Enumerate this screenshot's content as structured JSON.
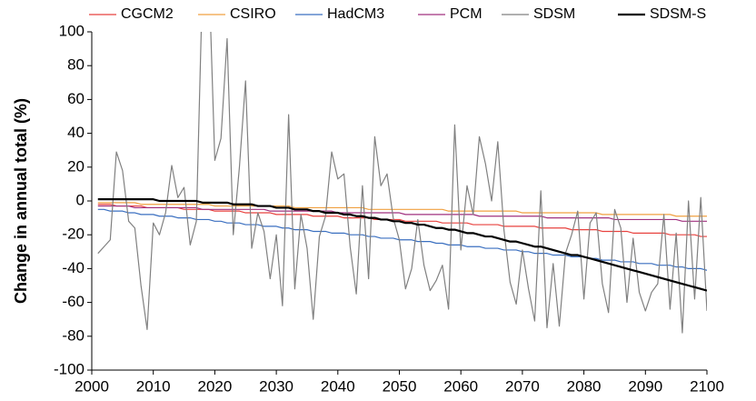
{
  "chart_data": {
    "type": "line",
    "ylabel": "Change in annual total (%)",
    "xlim": [
      2000,
      2100
    ],
    "xticks": [
      2000,
      2010,
      2020,
      2030,
      2040,
      2050,
      2060,
      2070,
      2080,
      2090,
      2100
    ],
    "ylim": [
      -100,
      100
    ],
    "yticks": [
      -100,
      -80,
      -60,
      -40,
      -20,
      0,
      20,
      40,
      60,
      80,
      100
    ],
    "grid": false,
    "legend": "top",
    "x": [
      2001,
      2002,
      2003,
      2004,
      2005,
      2006,
      2007,
      2008,
      2009,
      2010,
      2011,
      2012,
      2013,
      2014,
      2015,
      2016,
      2017,
      2018,
      2019,
      2020,
      2021,
      2022,
      2023,
      2024,
      2025,
      2026,
      2027,
      2028,
      2029,
      2030,
      2031,
      2032,
      2033,
      2034,
      2035,
      2036,
      2037,
      2038,
      2039,
      2040,
      2041,
      2042,
      2043,
      2044,
      2045,
      2046,
      2047,
      2048,
      2049,
      2050,
      2051,
      2052,
      2053,
      2054,
      2055,
      2056,
      2057,
      2058,
      2059,
      2060,
      2061,
      2062,
      2063,
      2064,
      2065,
      2066,
      2067,
      2068,
      2069,
      2070,
      2071,
      2072,
      2073,
      2074,
      2075,
      2076,
      2077,
      2078,
      2079,
      2080,
      2081,
      2082,
      2083,
      2084,
      2085,
      2086,
      2087,
      2088,
      2089,
      2090,
      2091,
      2092,
      2093,
      2094,
      2095,
      2096,
      2097,
      2098,
      2099,
      2100
    ],
    "series": [
      {
        "name": "CGCM2",
        "color": "#e8423f",
        "width": 1.2,
        "values": [
          -2,
          -2,
          -2,
          -3,
          -3,
          -3,
          -3,
          -3,
          -4,
          -4,
          -4,
          -4,
          -4,
          -4,
          -5,
          -5,
          -5,
          -5,
          -5,
          -6,
          -6,
          -6,
          -6,
          -6,
          -7,
          -7,
          -7,
          -7,
          -7,
          -8,
          -8,
          -8,
          -8,
          -8,
          -8,
          -9,
          -9,
          -9,
          -9,
          -9,
          -10,
          -10,
          -10,
          -10,
          -10,
          -11,
          -11,
          -11,
          -11,
          -11,
          -12,
          -12,
          -12,
          -12,
          -12,
          -12,
          -13,
          -13,
          -13,
          -13,
          -13,
          -14,
          -14,
          -14,
          -14,
          -14,
          -15,
          -15,
          -15,
          -15,
          -15,
          -15,
          -16,
          -16,
          -16,
          -16,
          -16,
          -17,
          -17,
          -17,
          -17,
          -17,
          -18,
          -18,
          -18,
          -18,
          -18,
          -19,
          -19,
          -19,
          -19,
          -19,
          -19,
          -20,
          -20,
          -20,
          -20,
          -20,
          -21,
          -21
        ]
      },
      {
        "name": "CSIRO",
        "color": "#f0a040",
        "width": 1.2,
        "values": [
          -1,
          -1,
          -1,
          -1,
          -1,
          -1,
          -1,
          -2,
          -2,
          -2,
          -2,
          -2,
          -2,
          -2,
          -2,
          -2,
          -2,
          -2,
          -2,
          -3,
          -3,
          -3,
          -3,
          -3,
          -3,
          -3,
          -3,
          -3,
          -3,
          -3,
          -3,
          -3,
          -4,
          -4,
          -4,
          -4,
          -4,
          -4,
          -4,
          -4,
          -4,
          -4,
          -4,
          -4,
          -5,
          -5,
          -5,
          -5,
          -5,
          -5,
          -5,
          -5,
          -5,
          -5,
          -5,
          -5,
          -5,
          -6,
          -6,
          -6,
          -6,
          -6,
          -6,
          -6,
          -6,
          -6,
          -6,
          -6,
          -6,
          -7,
          -7,
          -7,
          -7,
          -7,
          -7,
          -7,
          -7,
          -7,
          -7,
          -7,
          -7,
          -7,
          -8,
          -8,
          -8,
          -8,
          -8,
          -8,
          -8,
          -8,
          -8,
          -8,
          -8,
          -8,
          -9,
          -9,
          -9,
          -9,
          -9,
          -9
        ]
      },
      {
        "name": "HadCM3",
        "color": "#3a6fc0",
        "width": 1.2,
        "values": [
          -5,
          -5,
          -6,
          -6,
          -6,
          -7,
          -7,
          -8,
          -8,
          -8,
          -9,
          -9,
          -9,
          -10,
          -10,
          -10,
          -11,
          -11,
          -11,
          -12,
          -12,
          -13,
          -13,
          -13,
          -14,
          -14,
          -14,
          -15,
          -15,
          -15,
          -16,
          -16,
          -17,
          -17,
          -17,
          -18,
          -18,
          -18,
          -19,
          -19,
          -19,
          -20,
          -20,
          -20,
          -21,
          -21,
          -22,
          -22,
          -22,
          -23,
          -23,
          -23,
          -24,
          -24,
          -24,
          -25,
          -25,
          -26,
          -26,
          -26,
          -27,
          -27,
          -27,
          -28,
          -28,
          -28,
          -29,
          -29,
          -29,
          -30,
          -30,
          -31,
          -31,
          -31,
          -32,
          -32,
          -32,
          -33,
          -33,
          -33,
          -34,
          -34,
          -35,
          -35,
          -35,
          -36,
          -36,
          -36,
          -37,
          -37,
          -37,
          -38,
          -38,
          -38,
          -39,
          -39,
          -40,
          -40,
          -40,
          -41
        ]
      },
      {
        "name": "PCM",
        "color": "#a0307f",
        "width": 1.2,
        "values": [
          -3,
          -3,
          -3,
          -3,
          -3,
          -3,
          -4,
          -4,
          -4,
          -4,
          -4,
          -4,
          -4,
          -4,
          -4,
          -4,
          -4,
          -5,
          -5,
          -5,
          -5,
          -5,
          -5,
          -5,
          -5,
          -5,
          -5,
          -5,
          -6,
          -6,
          -6,
          -6,
          -6,
          -6,
          -6,
          -6,
          -6,
          -6,
          -6,
          -7,
          -7,
          -7,
          -7,
          -7,
          -7,
          -7,
          -7,
          -7,
          -7,
          -7,
          -8,
          -8,
          -8,
          -8,
          -8,
          -8,
          -8,
          -8,
          -8,
          -8,
          -8,
          -8,
          -9,
          -9,
          -9,
          -9,
          -9,
          -9,
          -9,
          -9,
          -9,
          -9,
          -9,
          -10,
          -10,
          -10,
          -10,
          -10,
          -10,
          -10,
          -10,
          -10,
          -10,
          -10,
          -11,
          -11,
          -11,
          -11,
          -11,
          -11,
          -11,
          -11,
          -11,
          -11,
          -11,
          -12,
          -12,
          -12,
          -12,
          -12
        ]
      },
      {
        "name": "SDSM",
        "color": "#808080",
        "width": 1.2,
        "values": [
          -31,
          -27,
          -23,
          29,
          18,
          -12,
          -16,
          -50,
          -76,
          -13,
          -20,
          -7,
          21,
          2,
          8,
          -26,
          -12,
          130,
          140,
          24,
          37,
          96,
          -20,
          20,
          71,
          -28,
          -7,
          -18,
          -46,
          -20,
          -62,
          51,
          -52,
          -8,
          -28,
          -70,
          -21,
          -9,
          29,
          13,
          16,
          -27,
          -55,
          9,
          -46,
          38,
          9,
          16,
          -10,
          -23,
          -52,
          -40,
          -11,
          -38,
          -53,
          -47,
          -38,
          -64,
          45,
          -29,
          9,
          -8,
          38,
          22,
          0,
          35,
          -17,
          -48,
          -61,
          -29,
          -52,
          -71,
          6,
          -75,
          -37,
          -74,
          -31,
          -20,
          -6,
          -58,
          -13,
          -7,
          -49,
          -66,
          -5,
          -16,
          -60,
          -22,
          -54,
          -65,
          -54,
          -49,
          -8,
          -64,
          -19,
          -78,
          0,
          -58,
          2,
          -65
        ]
      },
      {
        "name": "SDSM-S",
        "color": "#000000",
        "width": 2.2,
        "values": [
          1,
          1,
          1,
          1,
          1,
          1,
          1,
          1,
          1,
          1,
          0,
          0,
          0,
          0,
          0,
          0,
          0,
          -1,
          -1,
          -1,
          -1,
          -1,
          -2,
          -2,
          -2,
          -2,
          -3,
          -3,
          -3,
          -4,
          -4,
          -4,
          -5,
          -5,
          -5,
          -6,
          -6,
          -7,
          -7,
          -7,
          -8,
          -8,
          -9,
          -9,
          -10,
          -10,
          -11,
          -11,
          -12,
          -12,
          -13,
          -13,
          -14,
          -14,
          -15,
          -16,
          -16,
          -17,
          -17,
          -18,
          -19,
          -19,
          -20,
          -21,
          -21,
          -22,
          -23,
          -24,
          -24,
          -25,
          -26,
          -27,
          -27,
          -28,
          -29,
          -30,
          -31,
          -32,
          -32,
          -33,
          -34,
          -35,
          -36,
          -37,
          -38,
          -39,
          -40,
          -41,
          -42,
          -43,
          -44,
          -45,
          -46,
          -47,
          -48,
          -49,
          -50,
          -51,
          -52,
          -53
        ]
      }
    ]
  }
}
